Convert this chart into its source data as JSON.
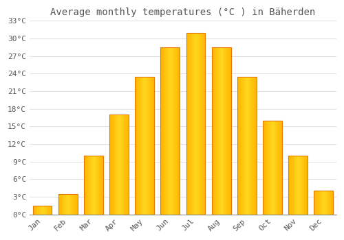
{
  "title": "Average monthly temperatures (°C ) in Bäherden",
  "months": [
    "Jan",
    "Feb",
    "Mar",
    "Apr",
    "May",
    "Jun",
    "Jul",
    "Aug",
    "Sep",
    "Oct",
    "Nov",
    "Dec"
  ],
  "temperatures": [
    1.5,
    3.5,
    10.0,
    17.0,
    23.5,
    28.5,
    31.0,
    28.5,
    23.5,
    16.0,
    10.0,
    4.0
  ],
  "bar_color_main": "#FFB700",
  "bar_color_edge": "#E87800",
  "background_color": "#FFFFFF",
  "grid_color": "#DDDDDD",
  "text_color": "#555555",
  "ylim": [
    0,
    33
  ],
  "yticks": [
    0,
    3,
    6,
    9,
    12,
    15,
    18,
    21,
    24,
    27,
    30,
    33
  ],
  "ytick_labels": [
    "0°C",
    "3°C",
    "6°C",
    "9°C",
    "12°C",
    "15°C",
    "18°C",
    "21°C",
    "24°C",
    "27°C",
    "30°C",
    "33°C"
  ],
  "title_fontsize": 10,
  "tick_fontsize": 8,
  "font_family": "monospace",
  "bar_width": 0.75
}
